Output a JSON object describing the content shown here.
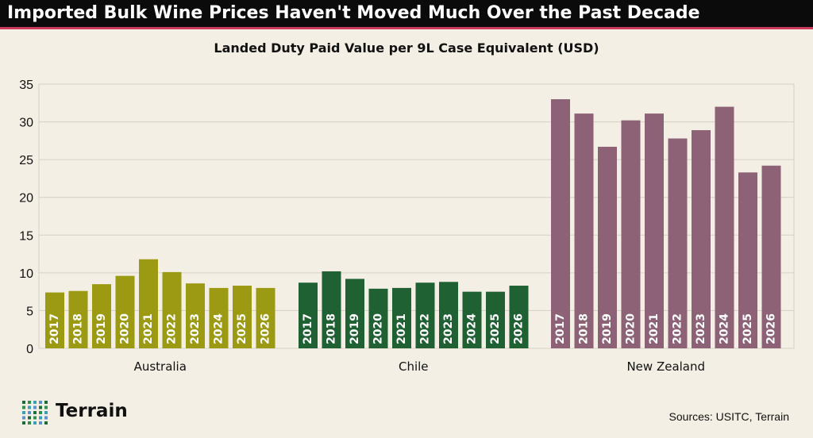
{
  "title": "Imported Bulk Wine Prices Haven't Moved Much Over the Past Decade",
  "source": "Sources: USITC, Terrain",
  "logo": {
    "text": "Terrain",
    "mark": "dot-grid-icon"
  },
  "colors": {
    "title_bg": "#0b0b0b",
    "title_rule": "#cf3a5c",
    "background": "#f4efe4",
    "australia": "#9c9a12",
    "chile": "#1f6133",
    "new_zealand": "#8d6277",
    "grid": "#d6d0c4",
    "bar_label": "#ffffff"
  },
  "chart_data": {
    "type": "bar",
    "title": "Landed Duty Paid Value per 9L Case Equivalent (USD)",
    "xlabel": "",
    "ylabel": "",
    "ylim": [
      0,
      35
    ],
    "yticks": [
      0,
      5,
      10,
      15,
      20,
      25,
      30,
      35
    ],
    "grid": true,
    "legend": "none",
    "groups": [
      {
        "name": "Australia",
        "color": "#9c9a12",
        "categories": [
          "2017",
          "2018",
          "2019",
          "2020",
          "2021",
          "2022",
          "2023",
          "2024",
          "2025",
          "2026"
        ],
        "values": [
          7.4,
          7.6,
          8.5,
          9.6,
          11.8,
          10.1,
          8.6,
          8.0,
          8.3,
          8.0
        ]
      },
      {
        "name": "Chile",
        "color": "#1f6133",
        "categories": [
          "2017",
          "2018",
          "2019",
          "2020",
          "2021",
          "2022",
          "2023",
          "2024",
          "2025",
          "2026"
        ],
        "values": [
          8.7,
          10.2,
          9.2,
          7.9,
          8.0,
          8.7,
          8.8,
          7.5,
          7.5,
          8.3
        ]
      },
      {
        "name": "New Zealand",
        "color": "#8d6277",
        "categories": [
          "2017",
          "2018",
          "2019",
          "2020",
          "2021",
          "2022",
          "2023",
          "2024",
          "2025",
          "2026"
        ],
        "values": [
          33.0,
          31.1,
          26.7,
          30.2,
          31.1,
          27.8,
          28.9,
          32.0,
          23.3,
          24.2
        ]
      }
    ]
  }
}
